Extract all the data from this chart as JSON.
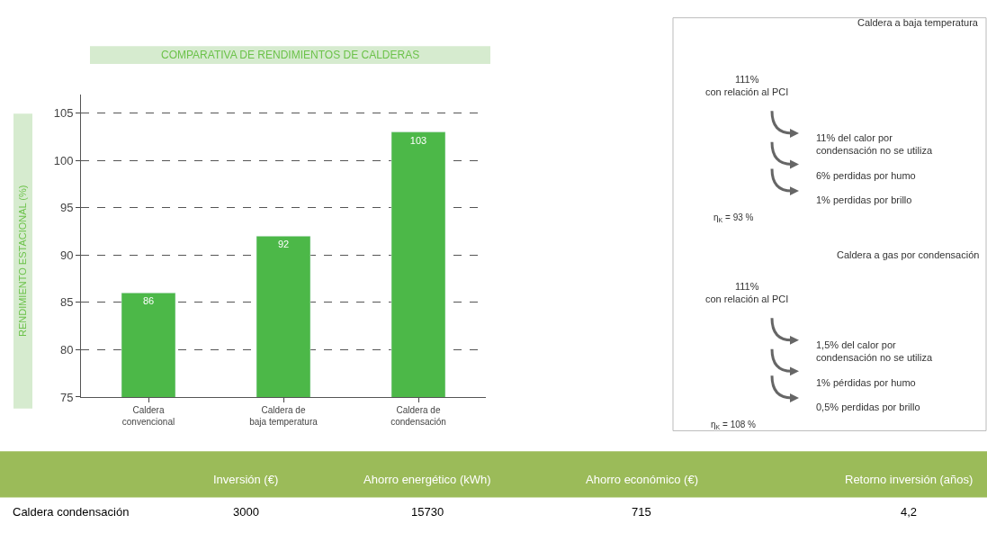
{
  "chart_data": [
    {
      "type": "bar",
      "title": "COMPARATIVA DE RENDIMIENTOS DE CALDERAS",
      "ylabel": "RENDIMIENTO ESTACIONAL (%)",
      "categories": [
        "Caldera\nconvencional",
        "Caldera de\nbaja temperatura",
        "Caldera de\ncondensación"
      ],
      "values": [
        86,
        92,
        103
      ],
      "color": "#4cb848",
      "ylim": [
        75,
        107
      ],
      "yticks": [
        75,
        80,
        85,
        90,
        95,
        100,
        105
      ],
      "grid": "y",
      "data_labels": true
    },
    {
      "type": "other",
      "title": "Caldera a baja temperatura",
      "annotations": [
        "111%\ncon relación al PCI",
        "11% del calor por\ncondensación no se utiliza",
        "6% perdidas por humo",
        "1% perdidas por brillo",
        "η$_{K}$ = 93 %"
      ]
    },
    {
      "type": "other",
      "title": "Caldera a gas por condensación",
      "annotations": [
        "111%\ncon relación al PCI",
        "1,5% del calor por\ncondensación no se utiliza",
        "1% pérdidas por humo",
        "0,5% perdidas por brillo",
        "η$_{K}$ = 108 %"
      ]
    },
    {
      "type": "other",
      "color": "#9bbb59",
      "annotations": [
        "Inversión (€)",
        "Ahorro energético (kWh)",
        "Ahorro económico (€)",
        "Retorno inversión (años)",
        "Caldera condensación",
        "3000",
        "15730",
        "715",
        "4,2"
      ]
    }
  ]
}
